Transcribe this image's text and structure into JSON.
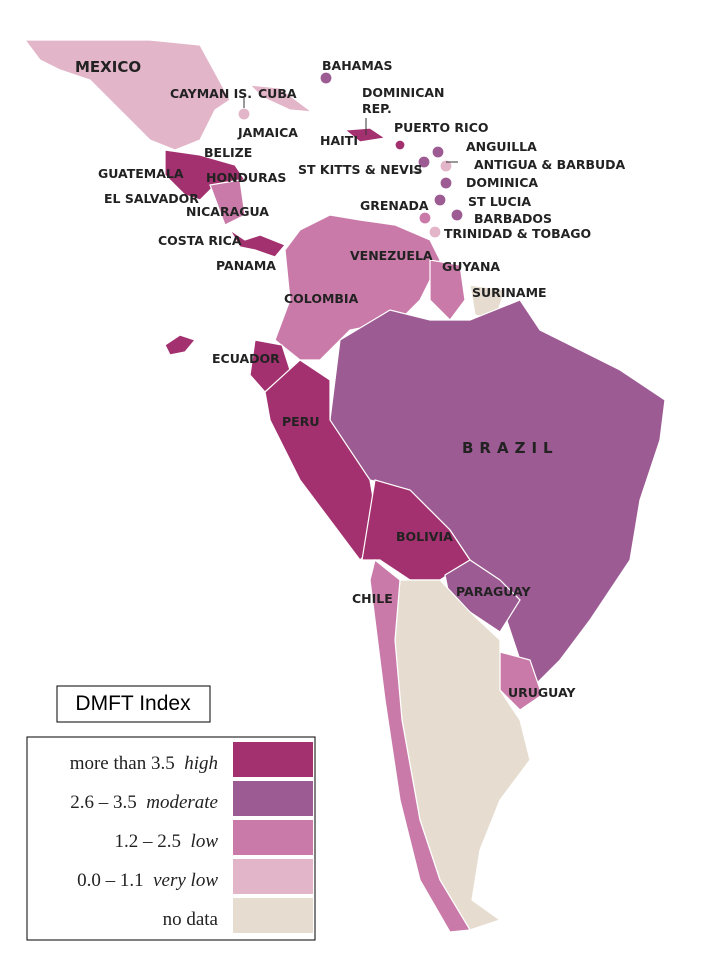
{
  "labels": [
    "MEXICO",
    "BAHAMAS",
    "CAYMAN IS.",
    "CUBA",
    "DOMINICAN",
    "REP.",
    "JAMAICA",
    "HAITI",
    "PUERTO RICO",
    "BELIZE",
    "GUATEMALA",
    "HONDURAS",
    "EL SALVADOR",
    "NICARAGUA",
    "ANGUILLA",
    "ANTIGUA & BARBUDA",
    "ST KITTS & NEVIS",
    "DOMINICA",
    "ST LUCIA",
    "GRENADA",
    "BARBADOS",
    "TRINIDAD & TOBAGO",
    "COSTA RICA",
    "PANAMA",
    "VENEZUELA",
    "GUYANA",
    "SURINAME",
    "COLOMBIA",
    "ECUADOR",
    "PERU",
    "BRAZIL",
    "BOLIVIA",
    "CHILE",
    "PARAGUAY",
    "URUGUAY"
  ],
  "legend": {
    "title": "DMFT Index",
    "items": [
      {
        "range": "more than 3.5",
        "level": "high",
        "color": "#a3316f"
      },
      {
        "range": "2.6 – 3.5",
        "level": "moderate",
        "color": "#9c5b93"
      },
      {
        "range": "1.2 – 2.5",
        "level": "low",
        "color": "#c97aa8"
      },
      {
        "range": "0.0 – 1.1",
        "level": "very low",
        "color": "#e2b5c9"
      },
      {
        "range": "no data",
        "color": "#e6ddd0"
      }
    ]
  }
}
